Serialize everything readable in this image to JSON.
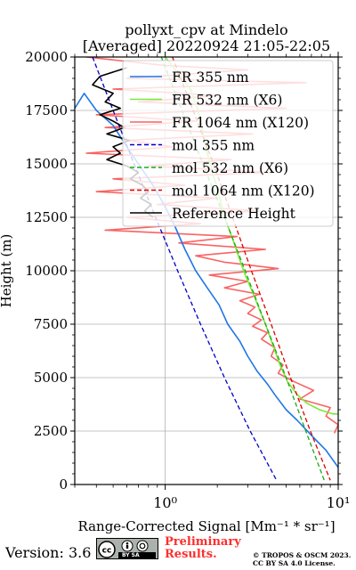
{
  "chart_data": {
    "type": "line",
    "title": "pollyxt_cpv at Mindelo",
    "subtitle": "[Averaged] 20220924 21:05-22:05",
    "xlabel": "Range-Corrected Signal [Mm⁻¹ * sr⁻¹]",
    "ylabel": "Height (m)",
    "xscale": "log",
    "xlim": [
      0.3,
      10
    ],
    "ylim": [
      0,
      20000
    ],
    "x_ticks": [
      {
        "value": 1,
        "label": "10⁰"
      },
      {
        "value": 10,
        "label": "10¹"
      }
    ],
    "y_ticks": [
      0,
      2500,
      5000,
      7500,
      10000,
      12500,
      15000,
      17500,
      20000
    ],
    "grid": true,
    "legend_position": "top-right",
    "series": [
      {
        "name": "FR 355 nm",
        "color": "#1f77e4",
        "style": "solid",
        "points": [
          [
            0.3,
            17600
          ],
          [
            0.34,
            18300
          ],
          [
            0.4,
            17500
          ],
          [
            0.5,
            16800
          ],
          [
            0.6,
            15800
          ],
          [
            0.7,
            15000
          ],
          [
            0.85,
            14000
          ],
          [
            1.0,
            13000
          ],
          [
            1.15,
            12000
          ],
          [
            1.3,
            11000
          ],
          [
            1.5,
            10000
          ],
          [
            1.75,
            9200
          ],
          [
            2.05,
            8400
          ],
          [
            2.3,
            7500
          ],
          [
            2.7,
            6700
          ],
          [
            3.0,
            6000
          ],
          [
            3.4,
            5300
          ],
          [
            3.9,
            4700
          ],
          [
            4.3,
            4200
          ],
          [
            5.0,
            3500
          ],
          [
            5.8,
            3000
          ],
          [
            7.0,
            2300
          ],
          [
            8.5,
            1600
          ],
          [
            10.0,
            800
          ]
        ]
      },
      {
        "name": "FR 532 nm (X6)",
        "color": "#7be83a",
        "style": "solid",
        "points": [
          [
            1.0,
            20000
          ],
          [
            1.4,
            18500
          ],
          [
            1.55,
            17500
          ],
          [
            1.65,
            16500
          ],
          [
            1.75,
            15500
          ],
          [
            1.9,
            14500
          ],
          [
            2.05,
            13500
          ],
          [
            2.2,
            12500
          ],
          [
            2.45,
            11500
          ],
          [
            2.7,
            10500
          ],
          [
            2.9,
            9800
          ],
          [
            3.2,
            9000
          ],
          [
            3.5,
            8200
          ],
          [
            3.8,
            7500
          ],
          [
            4.2,
            6500
          ],
          [
            4.6,
            5600
          ],
          [
            5.1,
            4800
          ],
          [
            5.8,
            4200
          ],
          [
            6.6,
            3800
          ],
          [
            7.8,
            3500
          ],
          [
            9.3,
            3300
          ],
          [
            10.0,
            3300
          ]
        ]
      },
      {
        "name": "FR 1064 nm (X120)",
        "color": "#f96363",
        "style": "solid",
        "points": [
          [
            0.35,
            20000
          ],
          [
            1.0,
            19600
          ],
          [
            3.0,
            19400
          ],
          [
            0.6,
            19000
          ],
          [
            6.5,
            18800
          ],
          [
            0.5,
            18500
          ],
          [
            2.0,
            18200
          ],
          [
            0.7,
            17900
          ],
          [
            5.0,
            17600
          ],
          [
            0.4,
            17300
          ],
          [
            1.5,
            17000
          ],
          [
            0.45,
            16700
          ],
          [
            3.2,
            16400
          ],
          [
            0.6,
            16100
          ],
          [
            1.1,
            15800
          ],
          [
            0.35,
            15500
          ],
          [
            2.4,
            15200
          ],
          [
            0.8,
            14900
          ],
          [
            4.0,
            14600
          ],
          [
            0.5,
            14300
          ],
          [
            1.3,
            14000
          ],
          [
            0.4,
            13700
          ],
          [
            2.0,
            13400
          ],
          [
            0.9,
            13100
          ],
          [
            3.5,
            12800
          ],
          [
            0.6,
            12500
          ],
          [
            1.6,
            12200
          ],
          [
            0.45,
            11900
          ],
          [
            2.6,
            11600
          ],
          [
            1.2,
            11300
          ],
          [
            3.8,
            11000
          ],
          [
            1.5,
            10700
          ],
          [
            2.2,
            10400
          ],
          [
            4.5,
            10100
          ],
          [
            1.8,
            9800
          ],
          [
            3.0,
            9500
          ],
          [
            2.2,
            9200
          ],
          [
            3.5,
            8900
          ],
          [
            2.7,
            8600
          ],
          [
            3.3,
            8300
          ],
          [
            3.0,
            8000
          ],
          [
            3.6,
            7700
          ],
          [
            3.2,
            7400
          ],
          [
            3.9,
            7100
          ],
          [
            3.6,
            6800
          ],
          [
            4.3,
            6400
          ],
          [
            4.1,
            6000
          ],
          [
            4.8,
            5600
          ],
          [
            4.5,
            5200
          ],
          [
            5.6,
            4800
          ],
          [
            7.2,
            4400
          ],
          [
            6.0,
            4000
          ],
          [
            9.0,
            3600
          ],
          [
            8.5,
            3200
          ],
          [
            10.0,
            2800
          ],
          [
            9.5,
            2400
          ]
        ]
      },
      {
        "name": "mol 355 nm",
        "color": "#0000cc",
        "style": "dashed",
        "points": [
          [
            0.38,
            20000
          ],
          [
            0.5,
            17500
          ],
          [
            0.66,
            15000
          ],
          [
            0.88,
            12500
          ],
          [
            1.18,
            10000
          ],
          [
            1.6,
            7500
          ],
          [
            2.2,
            5000
          ],
          [
            3.1,
            2500
          ],
          [
            4.4,
            200
          ]
        ]
      },
      {
        "name": "mol 532 nm (X6)",
        "color": "#1aaa1a",
        "style": "dashed",
        "points": [
          [
            0.95,
            20000
          ],
          [
            1.25,
            17500
          ],
          [
            1.65,
            15000
          ],
          [
            2.2,
            12500
          ],
          [
            2.9,
            10000
          ],
          [
            3.8,
            7500
          ],
          [
            5.0,
            5000
          ],
          [
            6.5,
            2500
          ],
          [
            8.3,
            200
          ]
        ]
      },
      {
        "name": "mol 1064 nm (X120)",
        "color": "#dd0000",
        "style": "dashed",
        "points": [
          [
            1.1,
            20000
          ],
          [
            1.45,
            17500
          ],
          [
            1.9,
            15000
          ],
          [
            2.45,
            12500
          ],
          [
            3.15,
            10000
          ],
          [
            4.1,
            7500
          ],
          [
            5.3,
            5000
          ],
          [
            6.9,
            2500
          ],
          [
            9.0,
            200
          ]
        ]
      },
      {
        "name": "Reference Height",
        "color": "#000000",
        "style": "solid",
        "points": [
          [
            0.6,
            19500
          ],
          [
            0.42,
            19100
          ],
          [
            0.38,
            18700
          ],
          [
            0.5,
            18300
          ],
          [
            0.45,
            17900
          ],
          [
            0.55,
            17600
          ],
          [
            0.42,
            17300
          ],
          [
            0.5,
            17000
          ],
          [
            0.58,
            16700
          ],
          [
            0.46,
            16400
          ],
          [
            0.62,
            16100
          ],
          [
            0.5,
            15800
          ],
          [
            0.55,
            15500
          ],
          [
            0.46,
            15200
          ],
          [
            0.6,
            14900
          ],
          [
            0.7,
            14600
          ],
          [
            0.63,
            14300
          ],
          [
            0.74,
            14000
          ],
          [
            0.8,
            13700
          ],
          [
            0.72,
            13400
          ],
          [
            0.83,
            13100
          ],
          [
            0.76,
            12800
          ],
          [
            0.85,
            12500
          ]
        ]
      }
    ]
  },
  "footer": {
    "version": "Version: 3.6",
    "license_badge_text": "BY   SA",
    "preliminary_line1": "Preliminary",
    "preliminary_line2": "Results.",
    "copyright_line1": "© TROPOS & OSCM 2023.",
    "copyright_line2": "CC BY SA 4.0 License."
  }
}
